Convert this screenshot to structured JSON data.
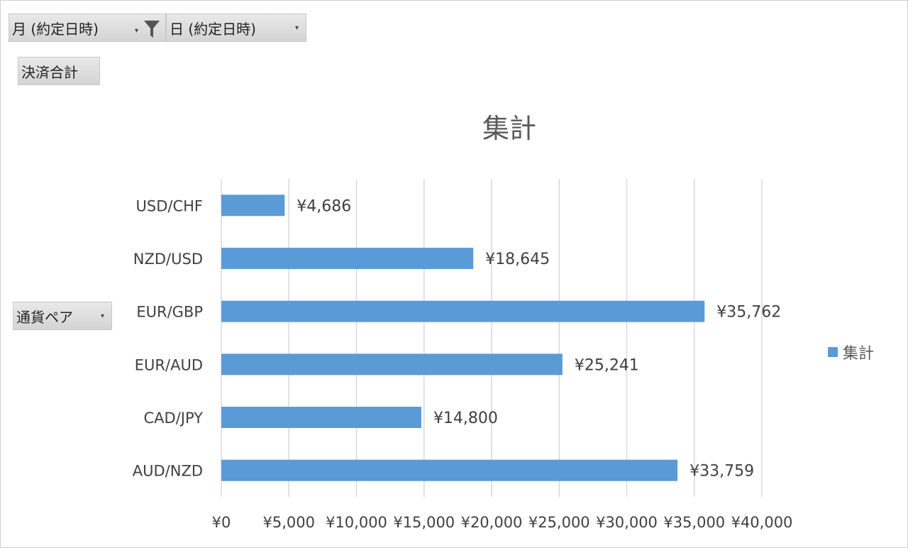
{
  "filters": {
    "month_label": "月 (約定日時)",
    "day_label": "日 (約定日時)",
    "value_field": "決済合計",
    "axis_field": "通貨ペア"
  },
  "colors": {
    "bar": "#5b9bd5",
    "grid": "#d9d9d9",
    "text": "#404040"
  },
  "chart_data": {
    "type": "bar",
    "orientation": "horizontal",
    "title": "集計",
    "categories": [
      "USD/CHF",
      "NZD/USD",
      "EUR/GBP",
      "EUR/AUD",
      "CAD/JPY",
      "AUD/NZD"
    ],
    "values": [
      4686,
      18645,
      35762,
      25241,
      14800,
      33759
    ],
    "data_labels": [
      "¥4,686",
      "¥18,645",
      "¥35,762",
      "¥25,241",
      "¥14,800",
      "¥33,759"
    ],
    "xlim": [
      0,
      40000
    ],
    "x_ticks": [
      0,
      5000,
      10000,
      15000,
      20000,
      25000,
      30000,
      35000,
      40000
    ],
    "x_tick_labels": [
      "¥0",
      "¥5,000",
      "¥10,000",
      "¥15,000",
      "¥20,000",
      "¥25,000",
      "¥30,000",
      "¥35,000",
      "¥40,000"
    ],
    "legend": {
      "entries": [
        "集計"
      ],
      "position": "right"
    },
    "grid": true
  }
}
